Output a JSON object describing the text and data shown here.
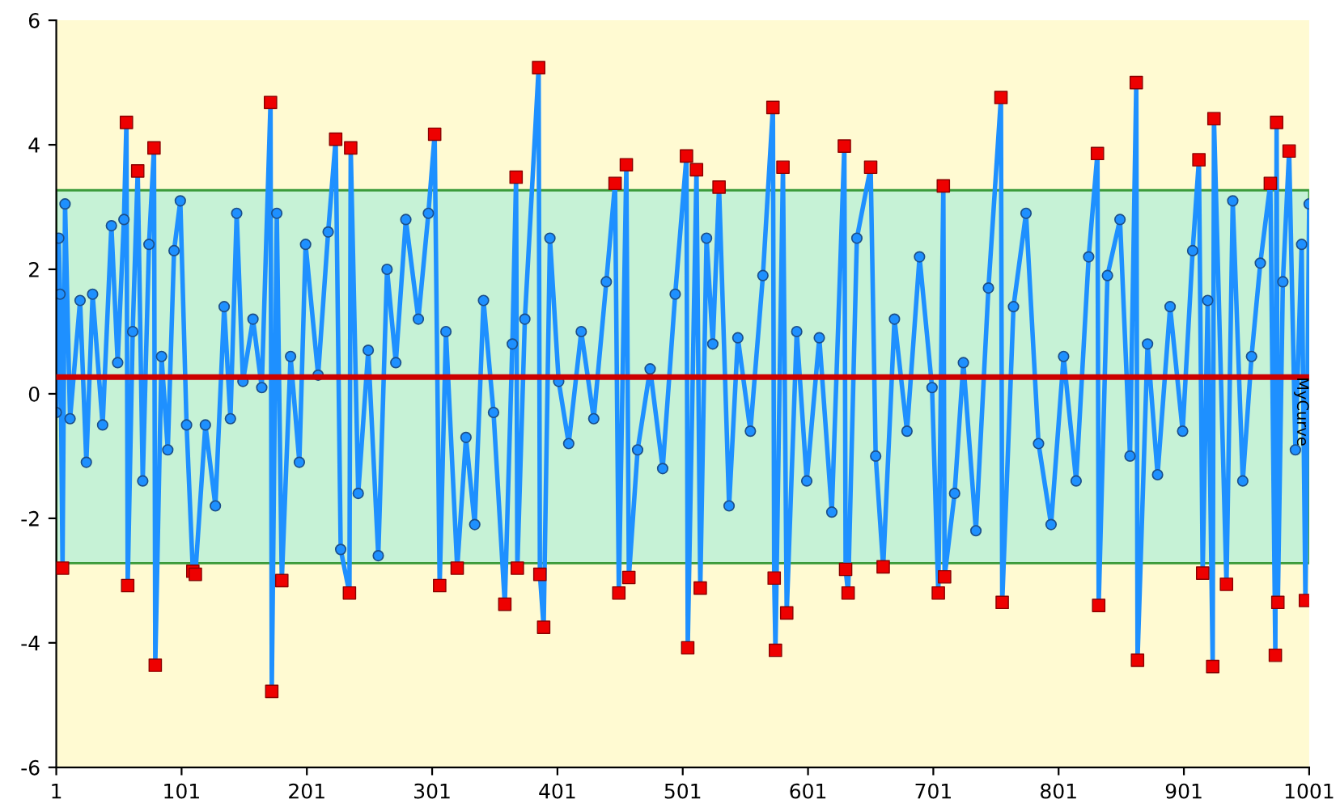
{
  "chart_data": {
    "type": "line",
    "xlim": [
      1,
      1001
    ],
    "xticks": [
      1,
      101,
      201,
      301,
      401,
      501,
      601,
      701,
      801,
      901,
      1001
    ],
    "ylim": [
      -6,
      6
    ],
    "yticks": [
      -6,
      -4,
      -2,
      0,
      2,
      4,
      6
    ],
    "grid": false,
    "legend": false,
    "bands": [
      {
        "axis": "y",
        "from": -2.72,
        "to": 3.27,
        "color": "#c6f2d6"
      }
    ],
    "ref_lines": [
      {
        "axis": "y",
        "value": 0.27,
        "label": "MyCurve",
        "color": "#cc0000"
      }
    ],
    "series": [
      {
        "color": "#1e90ff",
        "marker": "circle",
        "line_style": "solid",
        "x": [
          1,
          3,
          4,
          6,
          8,
          12,
          20,
          25,
          30,
          38,
          45,
          50,
          55,
          57,
          58,
          62,
          66,
          70,
          75,
          79,
          80,
          85,
          90,
          95,
          100,
          105,
          110,
          112,
          120,
          128,
          135,
          140,
          145,
          150,
          158,
          165,
          172,
          173,
          177,
          181,
          188,
          195,
          200,
          210,
          218,
          224,
          228,
          235,
          236,
          242,
          250,
          258,
          265,
          272,
          280,
          290,
          298,
          303,
          307,
          312,
          321,
          328,
          335,
          342,
          350,
          359,
          365,
          368,
          369,
          375,
          386,
          387,
          390,
          395,
          402,
          410,
          420,
          430,
          440,
          447,
          450,
          456,
          458,
          465,
          475,
          485,
          495,
          504,
          505,
          512,
          515,
          520,
          525,
          530,
          538,
          545,
          555,
          565,
          573,
          574,
          575,
          581,
          584,
          592,
          600,
          610,
          620,
          630,
          631,
          633,
          640,
          651,
          655,
          661,
          670,
          680,
          690,
          700,
          705,
          709,
          710,
          718,
          725,
          735,
          745,
          755,
          756,
          765,
          775,
          785,
          795,
          805,
          815,
          825,
          832,
          833,
          840,
          850,
          858,
          863,
          864,
          872,
          880,
          890,
          900,
          908,
          913,
          916,
          920,
          924,
          925,
          935,
          940,
          948,
          955,
          962,
          970,
          974,
          975,
          976,
          980,
          985,
          990,
          995,
          998,
          1001
        ],
        "values": [
          -0.3,
          2.5,
          1.6,
          -2.8,
          3.05,
          -0.4,
          1.5,
          -1.1,
          1.6,
          -0.5,
          2.7,
          0.5,
          2.8,
          4.36,
          -3.08,
          1.0,
          3.58,
          -1.4,
          2.4,
          3.95,
          -4.36,
          0.6,
          -0.9,
          2.3,
          3.1,
          -0.5,
          -2.85,
          -2.9,
          -0.5,
          -1.8,
          1.4,
          -0.4,
          2.9,
          0.2,
          1.2,
          0.1,
          4.68,
          -4.78,
          2.9,
          -3.0,
          0.6,
          -1.1,
          2.4,
          0.3,
          2.6,
          4.09,
          -2.5,
          -3.2,
          3.95,
          -1.6,
          0.7,
          -2.6,
          2.0,
          0.5,
          2.8,
          1.2,
          2.9,
          4.17,
          -3.08,
          1.0,
          -2.8,
          -0.7,
          -2.1,
          1.5,
          -0.3,
          -3.38,
          0.8,
          3.48,
          -2.8,
          1.2,
          5.24,
          -2.9,
          -3.75,
          2.5,
          0.2,
          -0.8,
          1.0,
          -0.4,
          1.8,
          3.38,
          -3.2,
          3.68,
          -2.95,
          -0.9,
          0.4,
          -1.2,
          1.6,
          3.82,
          -4.08,
          3.6,
          -3.12,
          2.5,
          0.8,
          3.32,
          -1.8,
          0.9,
          -0.6,
          1.9,
          4.6,
          -2.96,
          -4.12,
          3.64,
          -3.52,
          1.0,
          -1.4,
          0.9,
          -1.9,
          3.98,
          -2.82,
          -3.2,
          2.5,
          3.64,
          -1.0,
          -2.78,
          1.2,
          -0.6,
          2.2,
          0.1,
          -3.2,
          3.34,
          -2.94,
          -1.6,
          0.5,
          -2.2,
          1.7,
          4.76,
          -3.35,
          1.4,
          2.9,
          -0.8,
          -2.1,
          0.6,
          -1.4,
          2.2,
          3.86,
          -3.4,
          1.9,
          2.8,
          -1.0,
          5.0,
          -4.28,
          0.8,
          -1.3,
          1.4,
          -0.6,
          2.3,
          3.76,
          -2.88,
          1.5,
          -4.38,
          4.42,
          -3.06,
          3.1,
          -1.4,
          0.6,
          2.1,
          3.38,
          -4.2,
          4.36,
          -3.35,
          1.8,
          3.9,
          -0.9,
          2.4,
          -3.32,
          3.05
        ]
      },
      {
        "type": "scatter",
        "color": "#ee0000",
        "marker": "square",
        "x": [
          6,
          57,
          58,
          66,
          79,
          80,
          110,
          112,
          172,
          173,
          181,
          224,
          235,
          236,
          303,
          307,
          321,
          359,
          368,
          369,
          386,
          387,
          390,
          447,
          450,
          456,
          458,
          504,
          505,
          512,
          515,
          530,
          573,
          574,
          575,
          581,
          584,
          630,
          631,
          633,
          651,
          661,
          705,
          709,
          710,
          755,
          756,
          832,
          833,
          863,
          864,
          913,
          916,
          924,
          925,
          935,
          970,
          974,
          975,
          976,
          985,
          998
        ],
        "values": [
          -2.8,
          4.36,
          -3.08,
          3.58,
          3.95,
          -4.36,
          -2.85,
          -2.9,
          4.68,
          -4.78,
          -3.0,
          4.09,
          -3.2,
          3.95,
          4.17,
          -3.08,
          -2.8,
          -3.38,
          3.48,
          -2.8,
          5.24,
          -2.9,
          -3.75,
          3.38,
          -3.2,
          3.68,
          -2.95,
          3.82,
          -4.08,
          3.6,
          -3.12,
          3.32,
          4.6,
          -2.96,
          -4.12,
          3.64,
          -3.52,
          3.98,
          -2.82,
          -3.2,
          3.64,
          -2.78,
          -3.2,
          3.34,
          -2.94,
          4.76,
          -3.35,
          3.86,
          -3.4,
          5.0,
          -4.28,
          3.76,
          -2.88,
          -4.38,
          4.42,
          -3.06,
          3.38,
          -4.2,
          4.36,
          -3.35,
          3.9,
          -3.32
        ]
      }
    ]
  }
}
